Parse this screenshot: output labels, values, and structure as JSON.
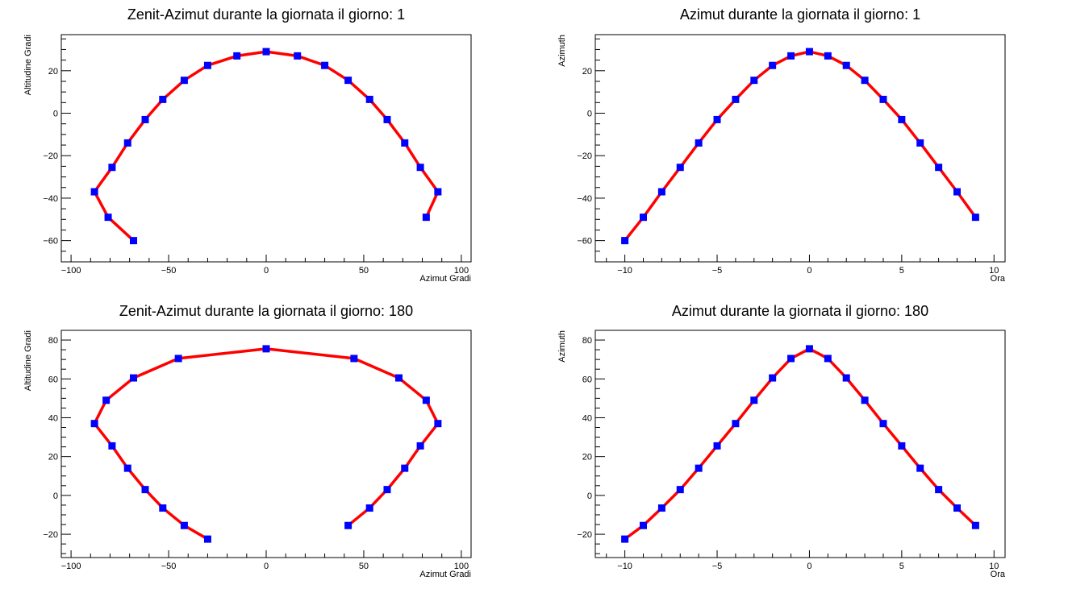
{
  "chart_data": [
    {
      "type": "line",
      "title": "Zenit-Azimut durante la giornata il giorno: 1",
      "xlabel": "Azimut Gradi",
      "ylabel": "Altitudine Gradi",
      "xlim": [
        -105,
        105
      ],
      "ylim": [
        -70,
        37
      ],
      "xticks": [
        -100,
        -50,
        0,
        50,
        100
      ],
      "yticks": [
        -60,
        -40,
        -20,
        0,
        20
      ],
      "line_color": "#ff0000",
      "marker_color": "#0000ff",
      "series": [
        {
          "x": [
            -68,
            -81,
            -88,
            -79,
            -71,
            -62,
            -53,
            -42,
            -30,
            -15,
            0,
            16,
            30,
            42,
            53,
            62,
            71,
            79,
            88,
            82
          ],
          "y": [
            -60,
            -49,
            -37,
            -25.5,
            -14,
            -3,
            6.5,
            15.5,
            22.5,
            27,
            29,
            27,
            22.5,
            15.5,
            6.5,
            -3,
            -14,
            -25.5,
            -37,
            -49
          ]
        }
      ]
    },
    {
      "type": "line",
      "title": "Azimut durante la giornata il giorno: 1",
      "xlabel": "Ora",
      "ylabel": "Azimuth",
      "xlim": [
        -11.6,
        10.6
      ],
      "ylim": [
        -70,
        37
      ],
      "xticks": [
        -10,
        -5,
        0,
        5,
        10
      ],
      "yticks": [
        -60,
        -40,
        -20,
        0,
        20
      ],
      "line_color": "#ff0000",
      "marker_color": "#0000ff",
      "series": [
        {
          "x": [
            -10,
            -9,
            -8,
            -7,
            -6,
            -5,
            -4,
            -3,
            -2,
            -1,
            0,
            1,
            2,
            3,
            4,
            5,
            6,
            7,
            8,
            9
          ],
          "y": [
            -60,
            -49,
            -37,
            -25.5,
            -14,
            -3,
            6.5,
            15.5,
            22.5,
            27,
            29,
            27,
            22.5,
            15.5,
            6.5,
            -3,
            -14,
            -25.5,
            -37,
            -49
          ]
        }
      ]
    },
    {
      "type": "line",
      "title": "Zenit-Azimut durante la giornata il giorno: 180",
      "xlabel": "Azimut Gradi",
      "ylabel": "Altitudine Gradi",
      "xlim": [
        -105,
        105
      ],
      "ylim": [
        -32,
        85
      ],
      "xticks": [
        -100,
        -50,
        0,
        50,
        100
      ],
      "yticks": [
        -20,
        0,
        20,
        40,
        60,
        80
      ],
      "line_color": "#ff0000",
      "marker_color": "#0000ff",
      "series": [
        {
          "x": [
            -30,
            -42,
            -53,
            -62,
            -71,
            -79,
            -88,
            -82,
            -68,
            -45,
            0,
            45,
            68,
            82,
            88,
            79,
            71,
            62,
            53,
            42
          ],
          "y": [
            -22.5,
            -15.5,
            -6.5,
            3,
            14,
            25.5,
            37,
            49,
            60.5,
            70.5,
            75.5,
            70.5,
            60.5,
            49,
            37,
            25.5,
            14,
            3,
            -6.5,
            -15.5
          ]
        }
      ]
    },
    {
      "type": "line",
      "title": "Azimut durante la giornata il giorno: 180",
      "xlabel": "Ora",
      "ylabel": "Azimuth",
      "xlim": [
        -11.6,
        10.6
      ],
      "ylim": [
        -32,
        85
      ],
      "xticks": [
        -10,
        -5,
        0,
        5,
        10
      ],
      "yticks": [
        -20,
        0,
        20,
        40,
        60,
        80
      ],
      "line_color": "#ff0000",
      "marker_color": "#0000ff",
      "series": [
        {
          "x": [
            -10,
            -9,
            -8,
            -7,
            -6,
            -5,
            -4,
            -3,
            -2,
            -1,
            0,
            1,
            2,
            3,
            4,
            5,
            6,
            7,
            8,
            9
          ],
          "y": [
            -22.5,
            -15.5,
            -6.5,
            3,
            14,
            25.5,
            37,
            49,
            60.5,
            70.5,
            75.5,
            70.5,
            60.5,
            49,
            37,
            25.5,
            14,
            3,
            -6.5,
            -15.5
          ]
        }
      ]
    }
  ]
}
